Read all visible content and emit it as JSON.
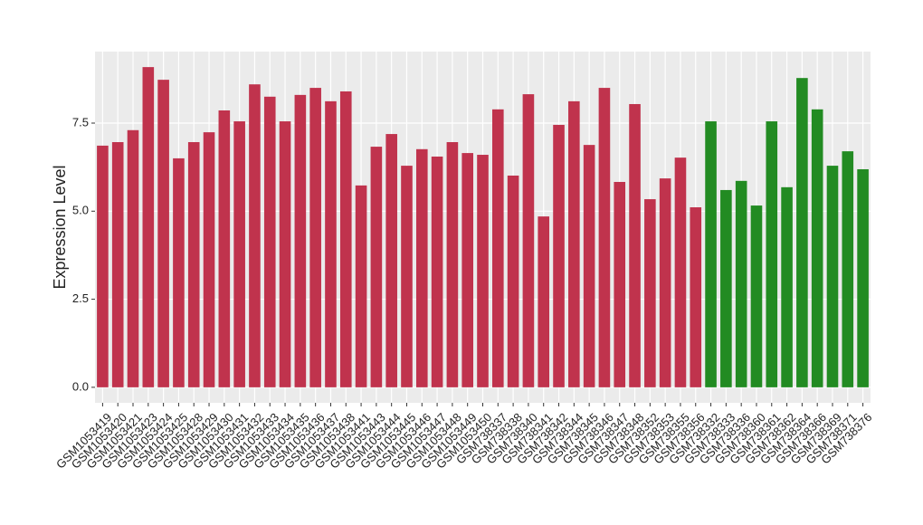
{
  "chart_data": {
    "type": "bar",
    "y_label": "Expression Level",
    "categories": [
      "GSM1053419",
      "GSM1053420",
      "GSM1053421",
      "GSM1053423",
      "GSM1053424",
      "GSM1053425",
      "GSM1053428",
      "GSM1053429",
      "GSM1053430",
      "GSM1053431",
      "GSM1053432",
      "GSM1053433",
      "GSM1053434",
      "GSM1053435",
      "GSM1053436",
      "GSM1053437",
      "GSM1053438",
      "GSM1053441",
      "GSM1053443",
      "GSM1053444",
      "GSM1053445",
      "GSM1053446",
      "GSM1053447",
      "GSM1053448",
      "GSM1053449",
      "GSM1053450",
      "GSM738337",
      "GSM738338",
      "GSM738340",
      "GSM738341",
      "GSM738342",
      "GSM738344",
      "GSM738345",
      "GSM738346",
      "GSM738347",
      "GSM738348",
      "GSM738352",
      "GSM738353",
      "GSM738355",
      "GSM738356",
      "GSM738332",
      "GSM738333",
      "GSM738336",
      "GSM738360",
      "GSM738361",
      "GSM738362",
      "GSM738364",
      "GSM738366",
      "GSM738369",
      "GSM738371",
      "GSM738376"
    ],
    "values": [
      6.86,
      6.96,
      7.3,
      9.09,
      8.73,
      6.5,
      6.96,
      7.24,
      7.86,
      7.55,
      8.6,
      8.25,
      7.55,
      8.3,
      8.5,
      8.12,
      8.4,
      5.73,
      6.83,
      7.19,
      6.29,
      6.76,
      6.55,
      6.96,
      6.65,
      6.6,
      7.89,
      6.01,
      8.32,
      4.85,
      7.45,
      8.12,
      6.88,
      8.5,
      5.83,
      8.04,
      5.34,
      5.93,
      6.52,
      5.11,
      7.55,
      5.6,
      5.86,
      5.16,
      7.55,
      5.68,
      8.78,
      7.89,
      6.29,
      6.7,
      6.19
    ],
    "colors": [
      "#c0334d",
      "#c0334d",
      "#c0334d",
      "#c0334d",
      "#c0334d",
      "#c0334d",
      "#c0334d",
      "#c0334d",
      "#c0334d",
      "#c0334d",
      "#c0334d",
      "#c0334d",
      "#c0334d",
      "#c0334d",
      "#c0334d",
      "#c0334d",
      "#c0334d",
      "#c0334d",
      "#c0334d",
      "#c0334d",
      "#c0334d",
      "#c0334d",
      "#c0334d",
      "#c0334d",
      "#c0334d",
      "#c0334d",
      "#c0334d",
      "#c0334d",
      "#c0334d",
      "#c0334d",
      "#c0334d",
      "#c0334d",
      "#c0334d",
      "#c0334d",
      "#c0334d",
      "#c0334d",
      "#c0334d",
      "#c0334d",
      "#c0334d",
      "#c0334d",
      "#228b22",
      "#228b22",
      "#228b22",
      "#228b22",
      "#228b22",
      "#228b22",
      "#228b22",
      "#228b22",
      "#228b22",
      "#228b22",
      "#228b22"
    ],
    "ylim": [
      -0.44,
      9.53
    ],
    "yticks": [
      {
        "value": 0,
        "label": "0.0"
      },
      {
        "value": 2.5,
        "label": "2.5"
      },
      {
        "value": 5,
        "label": "5.0"
      },
      {
        "value": 7.5,
        "label": "7.5"
      }
    ],
    "grid": true
  }
}
